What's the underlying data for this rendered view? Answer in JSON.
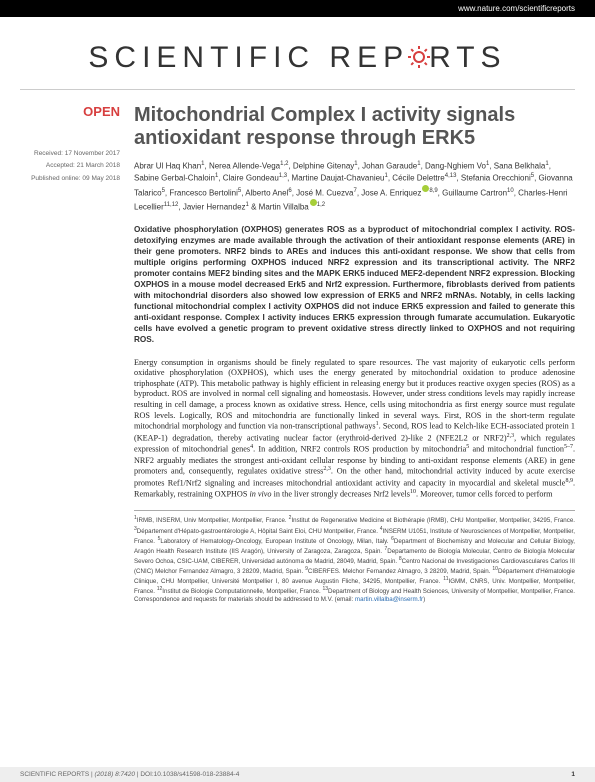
{
  "header": {
    "url": "www.nature.com/scientificreports",
    "logo_left": "SCIENTIFIC",
    "logo_right": "REP",
    "logo_right2": "RTS"
  },
  "badge": {
    "open": "OPEN"
  },
  "dates": {
    "received": "Received: 17 November 2017",
    "accepted": "Accepted: 21 March 2018",
    "published": "Published online: 09 May 2018"
  },
  "article": {
    "title": "Mitochondrial Complex I activity signals antioxidant response through ERK5",
    "authors_html": "Abrar Ul Haq Khan<sup>1</sup>, Nerea Allende-Vega<sup>1,2</sup>, Delphine Gitenay<sup>1</sup>, Johan Garaude<sup>1</sup>, Dang-Nghiem Vo<sup>1</sup>, Sana Belkhala<sup>1</sup>, Sabine Gerbal-Chaloin<sup>1</sup>, Claire Gondeau<sup>1,3</sup>, Martine Daujat-Chavanieu<sup>1</sup>, Cécile Delettre<sup>4,13</sup>, Stefania Orecchioni<sup>5</sup>, Giovanna Talarico<sup>5</sup>, Francesco Bertolini<sup>5</sup>, Alberto Anel<sup>6</sup>, José M. Cuezva<sup>7</sup>, Jose A. Enriquez<span class=\"orcid\"></span><sup>8,9</sup>, Guillaume Cartron<sup>10</sup>, Charles-Henri Lecellier<sup>11,12</sup>, Javier Hernandez<sup>1</sup> & Martin Villalba<span class=\"orcid\"></span><sup>1,2</sup>",
    "abstract": "Oxidative phosphorylation (OXPHOS) generates ROS as a byproduct of mitochondrial complex I activity. ROS-detoxifying enzymes are made available through the activation of their antioxidant response elements (ARE) in their gene promoters. NRF2 binds to AREs and induces this anti-oxidant response. We show that cells from multiple origins performing OXPHOS induced NRF2 expression and its transcriptional activity. The NRF2 promoter contains MEF2 binding sites and the MAPK ERK5 induced MEF2-dependent NRF2 expression. Blocking OXPHOS in a mouse model decreased Erk5 and Nrf2 expression. Furthermore, fibroblasts derived from patients with mitochondrial disorders also showed low expression of ERK5 and NRF2 mRNAs. Notably, in cells lacking functional mitochondrial complex I activity OXPHOS did not induce ERK5 expression and failed to generate this anti-oxidant response. Complex I activity induces ERK5 expression through fumarate accumulation. Eukaryotic cells have evolved a genetic program to prevent oxidative stress directly linked to OXPHOS and not requiring ROS.",
    "body": "Energy consumption in organisms should be finely regulated to spare resources. The vast majority of eukaryotic cells perform oxidative phosphorylation (OXPHOS), which uses the energy generated by mitochondrial oxidation to produce adenosine triphosphate (ATP). This metabolic pathway is highly efficient in releasing energy but it produces reactive oxygen species (ROS) as a byproduct. ROS are involved in normal cell signaling and homeostasis. However, under stress conditions levels may rapidly increase resulting in cell damage, a process known as oxidative stress. Hence, cells using mitochondria as first energy source must regulate ROS levels. Logically, ROS and mitochondria are functionally linked in several ways. First, ROS in the short-term regulate mitochondrial morphology and function via non-transcriptional pathways<sup>1</sup>. Second, ROS lead to Kelch-like ECH-associated protein 1 (KEAP-1) degradation, thereby activating nuclear factor (erythroid-derived 2)-like 2 (NFE2L2 or NRF2)<sup>2,3</sup>, which regulates expression of mitochondrial genes<sup>4</sup>. In addition, NRF2 controls ROS production by mitochondria<sup>5</sup> and mitochondrial function<sup>5–7</sup>. NRF2 arguably mediates the strongest anti-oxidant cellular response by binding to anti-oxidant response elements (ARE) in gene promoters and, consequently, regulates oxidative stress<sup>2,3</sup>. On the other hand, mitochondrial activity induced by acute exercise promotes Ref1/Nrf2 signaling and increases mitochondrial antioxidant activity and capacity in myocardial and skeletal muscle<sup>8,9</sup>. Remarkably, restraining OXPHOS <span class=\"em\">in vivo</span> in the liver strongly decreases Nrf2 levels<sup>10</sup>. Moreover, tumor cells forced to perform",
    "affiliations_html": "<sup>1</sup>IRMB, INSERM, Univ Montpellier, Montpellier, France. <sup>2</sup>Institut de Regenerative Medicine et Biothérapie (IRMB), CHU Montpellier, Montpellier, 34295, France. <sup>3</sup>Département d'Hépato-gastroentérologie A, Hôpital Saint Eloi, CHU Montpellier, France. <sup>4</sup>INSERM U1051, Institute of Neurosciences of Montpellier, Montpellier, France. <sup>5</sup>Laboratory of Hematology-Oncology, European Institute of Oncology, Milan, Italy. <sup>6</sup>Department of Biochemistry and Molecular and Cellular Biology, Aragón Health Research Institute (IIS Aragón), University of Zaragoza, Zaragoza, Spain. <sup>7</sup>Departamento de Biología Molecular, Centro de Biología Molecular Severo Ochoa, CSIC-UAM, CIBERER, Universidad autónoma de Madrid, 28049, Madrid, Spain. <sup>8</sup>Centro Nacional de Investigaciones Cardiovasculares Carlos III (CNIC) Melchor Fernandez Almagro, 3 28209, Madrid, Spain. <sup>9</sup>CIBERFES. Melchor Fernandez Almagro, 3 28209, Madrid, Spain. <sup>10</sup>Département d'Hématologie Clinique, CHU Montpellier, Université Montpellier I, 80 avenue Augustin Fliche, 34295, Montpellier, France. <sup>11</sup>IGMM, CNRS, Univ. Montpellier, Montpellier, France. <sup>12</sup>Institut de Biologie Computationnelle, Montpellier, France. <sup>13</sup>Department of Biology and Health Sciences, University of Montpellier, Montpellier, France. Correspondence and requests for materials should be addressed to M.V. (email: <a>martin.villalba@inserm.fr</a>)"
  },
  "footer": {
    "left_html": "SCIENTIFIC REPORTS | <span class=\"em\">(2018) 8:7420</span> | DOI:10.1038/s41598-018-23884-4",
    "page": "1"
  },
  "colors": {
    "top_bar_bg": "#000000",
    "open_badge": "#d73f3f",
    "title_color": "#555555",
    "orcid_green": "#a6ce39",
    "footer_bg": "#eeeeee",
    "gear_red": "#d73f3f"
  }
}
